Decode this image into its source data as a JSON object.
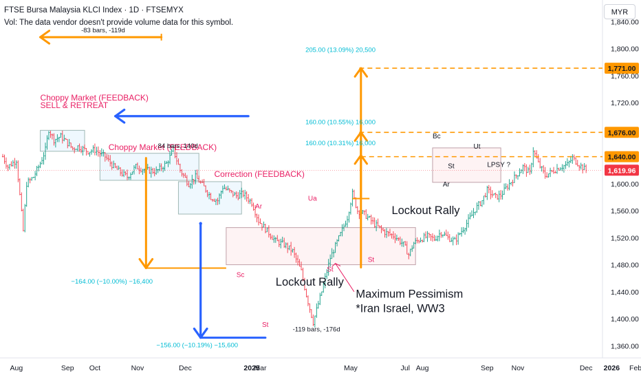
{
  "header": {
    "title": "FTSE Bursa Malaysia KLCI Index · 1D · FTSEMYX",
    "note": "Vol: The data vendor doesn't provide volume data for this symbol."
  },
  "currency": "MYR",
  "colors": {
    "orange": "#ff9800",
    "blue": "#2962ff",
    "pink": "#e91e63",
    "teal": "#00bcd4",
    "red": "#f23645",
    "box_pink_fill": "rgba(242,54,69,0.06)",
    "box_teal_fill": "rgba(33,150,243,0.07)"
  },
  "chart_data": {
    "type": "candlestick",
    "y_axis": {
      "ticks": [
        1360,
        1400,
        1440,
        1480,
        1520,
        1560,
        1600,
        1640,
        1680,
        1720,
        1760,
        1800,
        1840
      ],
      "tick_labels": [
        "1,360.00",
        "1,400.00",
        "1,440.00",
        "1,480.00",
        "1,520.00",
        "1,560.00",
        "1,600.00",
        "1,640.00",
        "1,680.00",
        "1,720.00",
        "1,760.00",
        "1,800.00",
        "1,840.00"
      ],
      "range": [
        1342,
        1872
      ]
    },
    "x_axis": {
      "labels": [
        "Aug",
        "Sep",
        "Oct",
        "Nov",
        "Dec",
        "2025",
        "Mar",
        "May",
        "Jul",
        "Aug",
        "Sep",
        "Nov",
        "Dec",
        "2026",
        "Feb",
        "Mar"
      ],
      "positions": [
        8,
        38,
        54,
        79,
        107,
        146,
        151,
        204,
        236,
        246,
        284,
        302,
        342,
        357,
        371,
        391
      ]
    },
    "price_tags": [
      {
        "label": "1,771.00",
        "value": 1771,
        "style": "orange"
      },
      {
        "label": "1,676.00",
        "value": 1676,
        "style": "orange"
      },
      {
        "label": "1,640.00",
        "value": 1640,
        "style": "orange"
      },
      {
        "label": "1,619.96",
        "value": 1619.96,
        "style": "red"
      }
    ],
    "path": [
      [
        0,
        1640
      ],
      [
        3,
        1625
      ],
      [
        8,
        1635
      ],
      [
        12,
        1530
      ],
      [
        14,
        1600
      ],
      [
        18,
        1610
      ],
      [
        22,
        1630
      ],
      [
        25,
        1650
      ],
      [
        27,
        1680
      ],
      [
        30,
        1665
      ],
      [
        34,
        1670
      ],
      [
        38,
        1660
      ],
      [
        41,
        1652
      ],
      [
        44,
        1655
      ],
      [
        50,
        1648
      ],
      [
        54,
        1650
      ],
      [
        60,
        1640
      ],
      [
        65,
        1625
      ],
      [
        70,
        1615
      ],
      [
        73,
        1610
      ],
      [
        78,
        1625
      ],
      [
        84,
        1620
      ],
      [
        90,
        1618
      ],
      [
        96,
        1630
      ],
      [
        100,
        1650
      ],
      [
        104,
        1620
      ],
      [
        109,
        1600
      ],
      [
        113,
        1610
      ],
      [
        118,
        1595
      ],
      [
        122,
        1580
      ],
      [
        126,
        1575
      ],
      [
        129,
        1595
      ],
      [
        133,
        1588
      ],
      [
        137,
        1582
      ],
      [
        141,
        1585
      ],
      [
        146,
        1572
      ],
      [
        150,
        1545
      ],
      [
        155,
        1530
      ],
      [
        160,
        1515
      ],
      [
        165,
        1510
      ],
      [
        170,
        1500
      ],
      [
        175,
        1470
      ],
      [
        178,
        1435
      ],
      [
        182,
        1395
      ],
      [
        187,
        1440
      ],
      [
        192,
        1490
      ],
      [
        198,
        1525
      ],
      [
        202,
        1550
      ],
      [
        205,
        1585
      ],
      [
        208,
        1560
      ],
      [
        212,
        1555
      ],
      [
        218,
        1540
      ],
      [
        224,
        1528
      ],
      [
        230,
        1522
      ],
      [
        235,
        1510
      ],
      [
        238,
        1495
      ],
      [
        241,
        1512
      ],
      [
        245,
        1518
      ],
      [
        249,
        1522
      ],
      [
        253,
        1518
      ],
      [
        257,
        1528
      ],
      [
        261,
        1520
      ],
      [
        265,
        1515
      ],
      [
        269,
        1530
      ],
      [
        273,
        1545
      ],
      [
        277,
        1562
      ],
      [
        281,
        1575
      ],
      [
        284,
        1590
      ],
      [
        289,
        1580
      ],
      [
        292,
        1583
      ],
      [
        297,
        1600
      ],
      [
        301,
        1612
      ],
      [
        305,
        1625
      ],
      [
        309,
        1615
      ],
      [
        311,
        1650
      ],
      [
        314,
        1630
      ],
      [
        318,
        1612
      ],
      [
        322,
        1618
      ],
      [
        327,
        1625
      ],
      [
        331,
        1628
      ],
      [
        334,
        1638
      ],
      [
        338,
        1628
      ],
      [
        342,
        1620
      ]
    ],
    "drawings": [
      {
        "type": "range_box",
        "label": "Choppy Market (FEEDBACK)",
        "sublabel": "SELL & RETREAT"
      },
      {
        "type": "range_box",
        "label": "Choppy Market (FEEDBACK)"
      },
      {
        "type": "range_box",
        "label": "Correction (FEEDBACK)"
      },
      {
        "type": "range_box",
        "label": "Lockout Rally"
      },
      {
        "type": "range_box",
        "label": "Lockout Rally"
      },
      {
        "type": "projection",
        "label": "-83 bars, -119d"
      },
      {
        "type": "projection",
        "label": "84 bars, 140d"
      },
      {
        "type": "projection",
        "label": "-119 bars, -176d"
      },
      {
        "type": "projection",
        "label": "−164.00 (−10.00%) −16,400"
      },
      {
        "type": "projection",
        "label": "−156.00 (−10.19%) −15,600"
      },
      {
        "type": "projection",
        "label": "205.00 (13.09%) 20,500"
      },
      {
        "type": "projection",
        "label": "160.00 (10.55%) 16,000"
      },
      {
        "type": "projection",
        "label": "160.00 (10.31%) 16,000"
      }
    ]
  },
  "annotations": {
    "wyckoff": [
      "Ar",
      "Sc",
      "St",
      "Ua",
      "St",
      "St",
      "Bc",
      "Ut",
      "St",
      "Ar",
      "LPSY ?"
    ],
    "callout": [
      "Maximum Pessimism",
      "*Iran Israel, WW3"
    ]
  }
}
